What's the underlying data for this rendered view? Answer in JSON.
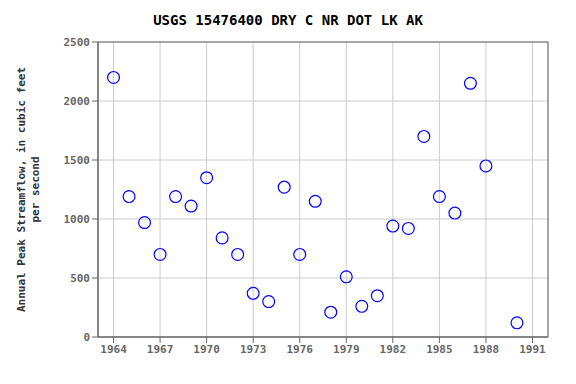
{
  "chart_data": {
    "type": "scatter",
    "title": "USGS 15476400 DRY C NR DOT LK AK",
    "ylabel": "Annual Peak Streamflow, in cubic feet\nper second",
    "x": [
      1964,
      1965,
      1966,
      1967,
      1968,
      1969,
      1970,
      1971,
      1972,
      1973,
      1974,
      1975,
      1976,
      1977,
      1978,
      1979,
      1980,
      1981,
      1982,
      1983,
      1984,
      1985,
      1986,
      1987,
      1988,
      1990
    ],
    "values": [
      2200,
      1190,
      970,
      700,
      1190,
      1110,
      1350,
      840,
      700,
      370,
      300,
      1270,
      700,
      1150,
      210,
      510,
      260,
      350,
      940,
      920,
      1700,
      1190,
      1050,
      2150,
      1450,
      120
    ],
    "xlim": [
      1963,
      1992
    ],
    "ylim": [
      0,
      2500
    ],
    "xticks": [
      1964,
      1967,
      1970,
      1973,
      1976,
      1979,
      1982,
      1985,
      1988,
      1991
    ],
    "yticks": [
      0,
      500,
      1000,
      1500,
      2000,
      2500
    ],
    "color": "blue",
    "marker": "o",
    "grid": true
  }
}
